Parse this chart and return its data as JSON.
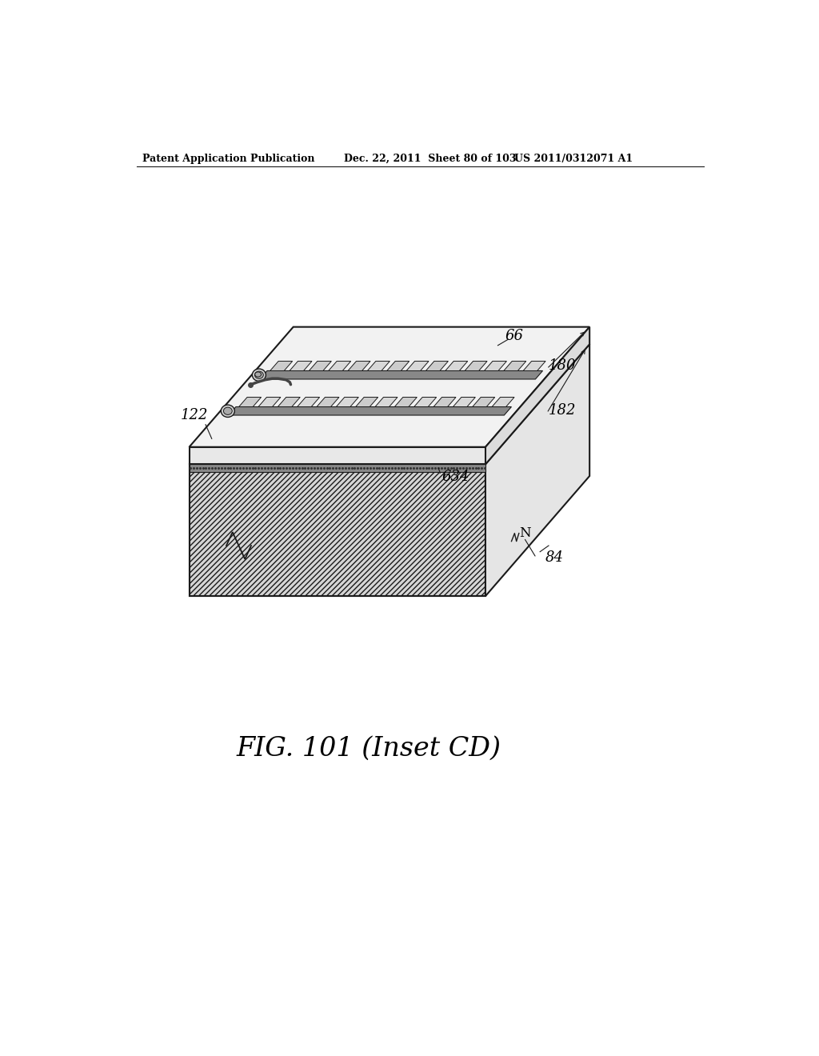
{
  "header_left": "Patent Application Publication",
  "header_mid": "Dec. 22, 2011  Sheet 80 of 103",
  "header_right": "US 2011/0312071 A1",
  "figure_caption": "FIG. 101 (Inset CD)",
  "background_color": "#ffffff",
  "line_color": "#1a1a1a",
  "substrate_front_color": "#d8d8d8",
  "substrate_right_color": "#e0e0e0",
  "chip_top_color": "#f0f0f0",
  "chip_right_color": "#e8e8e8",
  "channel_dark": "#555555",
  "chamber_fill": "#c8c8c8",
  "chamber_light": "#e8e8e8"
}
